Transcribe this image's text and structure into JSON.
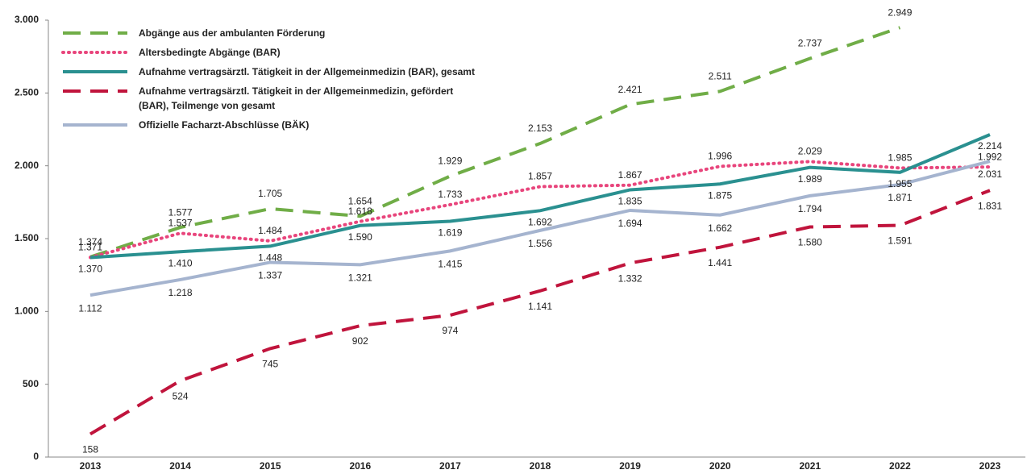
{
  "chart_data": {
    "type": "line",
    "categories": [
      "2013",
      "2014",
      "2015",
      "2016",
      "2017",
      "2018",
      "2019",
      "2020",
      "2021",
      "2022",
      "2023"
    ],
    "ylim": [
      0,
      3000
    ],
    "yticks": [
      {
        "value": 0,
        "label": "0"
      },
      {
        "value": 500,
        "label": "500"
      },
      {
        "value": 1000,
        "label": "1.000"
      },
      {
        "value": 1500,
        "label": "1.500"
      },
      {
        "value": 2000,
        "label": "2.000"
      },
      {
        "value": 2500,
        "label": "2.500"
      },
      {
        "value": 3000,
        "label": "3.000"
      }
    ],
    "series": [
      {
        "name": "Abgänge aus der ambulanten Förderung",
        "color": "#70ad47",
        "style": "dashed",
        "values": [
          1374,
          1577,
          1705,
          1654,
          1929,
          2153,
          2421,
          2511,
          2737,
          2949,
          null
        ],
        "value_labels": [
          "1.374",
          "1.577",
          "1.705",
          "1.654",
          "1.929",
          "2.153",
          "2.421",
          "2.511",
          "2.737",
          "2.949",
          null
        ]
      },
      {
        "name": "Altersbedingte Abgänge (BAR)",
        "color": "#e8457c",
        "style": "dotted",
        "values": [
          1371,
          1537,
          1484,
          1618,
          1733,
          1857,
          1867,
          1996,
          2029,
          1985,
          1992
        ],
        "value_labels": [
          "1.371",
          "1.537",
          "1.484",
          "1.618",
          "1.733",
          "1.857",
          "1.867",
          "1.996",
          "2.029",
          "1.985",
          "1.992"
        ]
      },
      {
        "name": "Aufnahme vertragsärztl. Tätigkeit in der Allgemeinmedizin (BAR), gesamt",
        "color": "#2a9090",
        "style": "solid",
        "values": [
          1370,
          1410,
          1448,
          1590,
          1619,
          1692,
          1835,
          1875,
          1989,
          1955,
          2214
        ],
        "value_labels": [
          "1.370",
          "1.410",
          "1.448",
          "1.590",
          "1.619",
          "1.692",
          "1.835",
          "1.875",
          "1.989",
          "1.955",
          "2.214"
        ]
      },
      {
        "name": "Aufnahme vertragsärztl. Tätigkeit in der Allgemeinmedizin, gefördert (BAR), Teilmenge von gesamt",
        "color": "#c0143c",
        "style": "dashed",
        "values": [
          158,
          524,
          745,
          902,
          974,
          1141,
          1332,
          1441,
          1580,
          1591,
          1831
        ],
        "value_labels": [
          "158",
          "524",
          "745",
          "902",
          "974",
          "1.141",
          "1.332",
          "1.441",
          "1.580",
          "1.591",
          "1.831"
        ]
      },
      {
        "name": "Offizielle Facharzt-Abschlüsse (BÄK)",
        "color": "#a5b4cf",
        "style": "solid",
        "values": [
          1112,
          1218,
          1337,
          1321,
          1415,
          1556,
          1694,
          1662,
          1794,
          1871,
          2031
        ],
        "value_labels": [
          "1.112",
          "1.218",
          "1.337",
          "1.321",
          "1.415",
          "1.556",
          "1.694",
          "1.662",
          "1.794",
          "1.871",
          "2.031"
        ]
      }
    ]
  }
}
